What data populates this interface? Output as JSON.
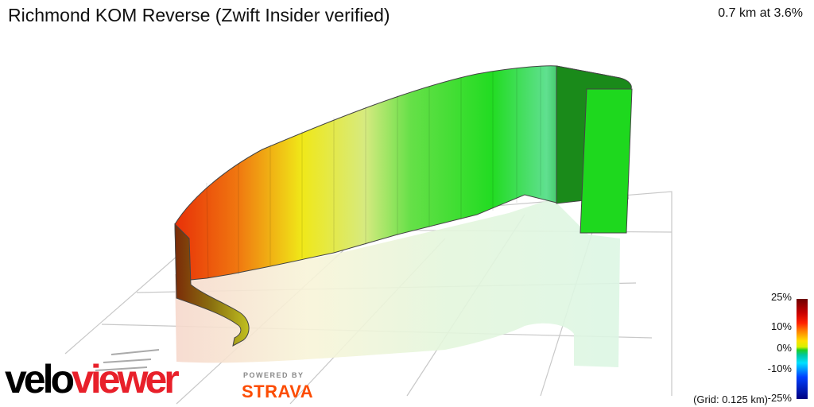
{
  "title": "Richmond KOM Reverse (Zwift Insider verified)",
  "summary": "0.7 km at 3.6%",
  "gradient_scale": {
    "labels": [
      "25%",
      "10%",
      "0%",
      "-10%",
      "-25%"
    ],
    "grid_note": "(Grid: 0.125 km)"
  },
  "branding": {
    "logo_part1": "velo",
    "logo_part2": "viewer",
    "powered_by": "POWERED BY",
    "strava": "STRAVA"
  },
  "colors": {
    "steep": "#e8400a",
    "moderate": "#f0e020",
    "flat": "#20d820",
    "shadow": "#2a8a20"
  },
  "icons": [
    "compass-icon"
  ]
}
